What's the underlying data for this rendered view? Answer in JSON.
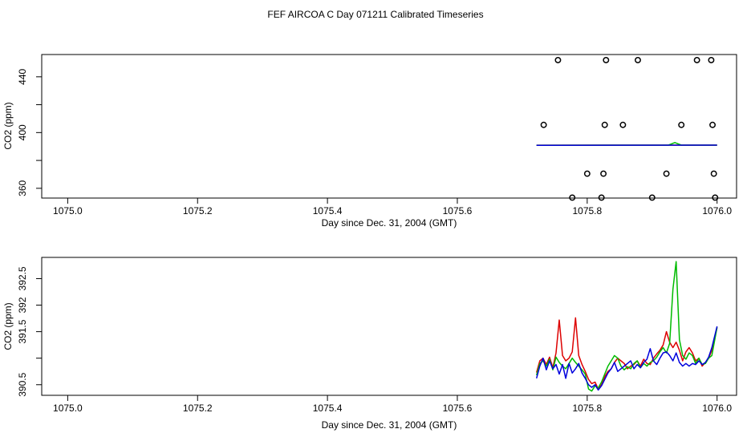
{
  "title": "FEF AIRCOA C  Day 071211  Calibrated Timeseries",
  "chart_data": [
    {
      "type": "scatter",
      "xlabel": "Day since Dec. 31, 2004 (GMT)",
      "ylabel": "CO2 (ppm)",
      "xlim": [
        1074.96,
        1076.03
      ],
      "ylim": [
        353,
        456
      ],
      "xticks": [
        1075.0,
        1075.2,
        1075.4,
        1075.6,
        1075.8,
        1076.0
      ],
      "xtick_labels": [
        "1075.0",
        "1075.2",
        "1075.4",
        "1075.6",
        "1075.8",
        "1076.0"
      ],
      "yticks": [
        360,
        380,
        400,
        420,
        440
      ],
      "ytick_labels": [
        "360",
        "",
        "400",
        "",
        "440"
      ],
      "grid": false,
      "points": [
        {
          "x": 1075.755,
          "y": 452
        },
        {
          "x": 1075.829,
          "y": 452
        },
        {
          "x": 1075.878,
          "y": 452
        },
        {
          "x": 1075.969,
          "y": 452
        },
        {
          "x": 1075.991,
          "y": 452
        },
        {
          "x": 1075.733,
          "y": 405.5
        },
        {
          "x": 1075.827,
          "y": 405.5
        },
        {
          "x": 1075.855,
          "y": 405.5
        },
        {
          "x": 1075.945,
          "y": 405.5
        },
        {
          "x": 1075.993,
          "y": 405.5
        },
        {
          "x": 1075.8,
          "y": 370.5
        },
        {
          "x": 1075.825,
          "y": 370.5
        },
        {
          "x": 1075.922,
          "y": 370.5
        },
        {
          "x": 1075.995,
          "y": 370.5
        },
        {
          "x": 1075.777,
          "y": 353.3
        },
        {
          "x": 1075.822,
          "y": 353.3
        },
        {
          "x": 1075.9,
          "y": 353.3
        },
        {
          "x": 1075.997,
          "y": 353.3
        }
      ],
      "series": [
        {
          "color": "#dd0000",
          "x": [
            1075.722,
            1076.0
          ],
          "y": [
            390.9,
            391.0
          ]
        },
        {
          "color": "#00bb00",
          "x": [
            1075.722,
            1075.925,
            1075.935,
            1075.945,
            1076.0
          ],
          "y": [
            390.9,
            391.0,
            392.8,
            391.0,
            391.0
          ]
        },
        {
          "color": "#0000dd",
          "x": [
            1075.722,
            1076.0
          ],
          "y": [
            390.8,
            391.0
          ]
        }
      ]
    },
    {
      "type": "line",
      "xlabel": "Day since Dec. 31, 2004 (GMT)",
      "ylabel": "CO2 (ppm)",
      "xlim": [
        1074.96,
        1076.03
      ],
      "ylim": [
        390.3,
        392.9
      ],
      "xticks": [
        1075.0,
        1075.2,
        1075.4,
        1075.6,
        1075.8,
        1076.0
      ],
      "xtick_labels": [
        "1075.0",
        "1075.2",
        "1075.4",
        "1075.6",
        "1075.8",
        "1076.0"
      ],
      "yticks": [
        390.5,
        391.0,
        391.5,
        392.0,
        392.5
      ],
      "ytick_labels": [
        "390.5",
        "",
        "391.5",
        "392",
        "392.5"
      ],
      "grid": false,
      "series": [
        {
          "color": "#dd0000",
          "x": [
            1075.722,
            1075.727,
            1075.732,
            1075.737,
            1075.742,
            1075.747,
            1075.752,
            1075.757,
            1075.762,
            1075.767,
            1075.772,
            1075.777,
            1075.782,
            1075.787,
            1075.792,
            1075.797,
            1075.802,
            1075.807,
            1075.812,
            1075.817,
            1075.822,
            1075.827,
            1075.832,
            1075.837,
            1075.842,
            1075.847,
            1075.852,
            1075.857,
            1075.862,
            1075.867,
            1075.872,
            1075.877,
            1075.882,
            1075.887,
            1075.892,
            1075.897,
            1075.902,
            1075.907,
            1075.912,
            1075.917,
            1075.922,
            1075.927,
            1075.932,
            1075.937,
            1075.942,
            1075.947,
            1075.952,
            1075.957,
            1075.962,
            1075.967,
            1075.972,
            1075.977,
            1075.982,
            1075.987,
            1075.992,
            1076.0
          ],
          "y": [
            390.73,
            390.95,
            391.0,
            390.88,
            391.02,
            390.82,
            391.1,
            391.72,
            391.05,
            390.95,
            391.0,
            391.12,
            391.76,
            391.05,
            390.88,
            390.75,
            390.6,
            390.52,
            390.55,
            390.42,
            390.5,
            390.65,
            390.75,
            390.8,
            390.92,
            391.0,
            390.95,
            390.9,
            390.8,
            390.85,
            390.88,
            390.95,
            390.85,
            390.98,
            390.9,
            390.88,
            391.0,
            391.08,
            391.15,
            391.25,
            391.5,
            391.3,
            391.2,
            391.3,
            391.15,
            390.95,
            391.12,
            391.2,
            391.1,
            390.95,
            391.0,
            390.85,
            390.92,
            391.0,
            391.15,
            391.58
          ]
        },
        {
          "color": "#00bb00",
          "x": [
            1075.722,
            1075.727,
            1075.732,
            1075.737,
            1075.742,
            1075.747,
            1075.752,
            1075.757,
            1075.762,
            1075.767,
            1075.772,
            1075.777,
            1075.782,
            1075.787,
            1075.792,
            1075.797,
            1075.802,
            1075.807,
            1075.812,
            1075.817,
            1075.822,
            1075.827,
            1075.832,
            1075.837,
            1075.842,
            1075.847,
            1075.852,
            1075.857,
            1075.862,
            1075.867,
            1075.872,
            1075.877,
            1075.882,
            1075.887,
            1075.892,
            1075.897,
            1075.902,
            1075.907,
            1075.912,
            1075.917,
            1075.922,
            1075.927,
            1075.932,
            1075.937,
            1075.942,
            1075.947,
            1075.952,
            1075.957,
            1075.962,
            1075.967,
            1075.972,
            1075.977,
            1075.982,
            1075.987,
            1075.992,
            1076.0
          ],
          "y": [
            390.68,
            390.9,
            390.95,
            390.85,
            390.98,
            390.78,
            391.02,
            390.92,
            390.85,
            390.8,
            390.9,
            391.0,
            390.92,
            390.85,
            390.78,
            390.7,
            390.42,
            390.38,
            390.48,
            390.44,
            390.55,
            390.7,
            390.85,
            390.95,
            391.05,
            391.0,
            390.85,
            390.78,
            390.84,
            390.8,
            390.9,
            390.95,
            390.82,
            390.9,
            390.85,
            390.92,
            390.95,
            391.02,
            391.12,
            391.2,
            391.1,
            391.28,
            392.3,
            392.82,
            391.35,
            391.05,
            390.98,
            391.1,
            391.05,
            390.9,
            391.0,
            390.88,
            390.9,
            391.0,
            391.05,
            391.58
          ]
        },
        {
          "color": "#0000dd",
          "x": [
            1075.722,
            1075.727,
            1075.732,
            1075.737,
            1075.742,
            1075.747,
            1075.752,
            1075.757,
            1075.762,
            1075.767,
            1075.772,
            1075.777,
            1075.782,
            1075.787,
            1075.792,
            1075.797,
            1075.802,
            1075.807,
            1075.812,
            1075.817,
            1075.822,
            1075.827,
            1075.832,
            1075.837,
            1075.842,
            1075.847,
            1075.852,
            1075.857,
            1075.862,
            1075.867,
            1075.872,
            1075.877,
            1075.882,
            1075.887,
            1075.892,
            1075.897,
            1075.902,
            1075.907,
            1075.912,
            1075.917,
            1075.922,
            1075.927,
            1075.932,
            1075.937,
            1075.942,
            1075.947,
            1075.952,
            1075.957,
            1075.962,
            1075.967,
            1075.972,
            1075.977,
            1075.982,
            1075.987,
            1075.992,
            1076.0
          ],
          "y": [
            390.62,
            390.85,
            391.0,
            390.78,
            390.95,
            390.8,
            390.88,
            390.7,
            390.88,
            390.62,
            390.9,
            390.72,
            390.8,
            390.9,
            390.72,
            390.62,
            390.5,
            390.45,
            390.5,
            390.4,
            390.48,
            390.6,
            390.72,
            390.8,
            390.92,
            390.75,
            390.8,
            390.85,
            390.9,
            390.95,
            390.8,
            390.88,
            390.82,
            390.92,
            390.98,
            391.18,
            390.95,
            390.88,
            391.0,
            391.1,
            391.12,
            391.05,
            390.95,
            391.1,
            390.92,
            390.85,
            390.9,
            390.85,
            390.9,
            390.88,
            390.95,
            390.88,
            390.92,
            391.02,
            391.2,
            391.6
          ]
        }
      ]
    }
  ]
}
